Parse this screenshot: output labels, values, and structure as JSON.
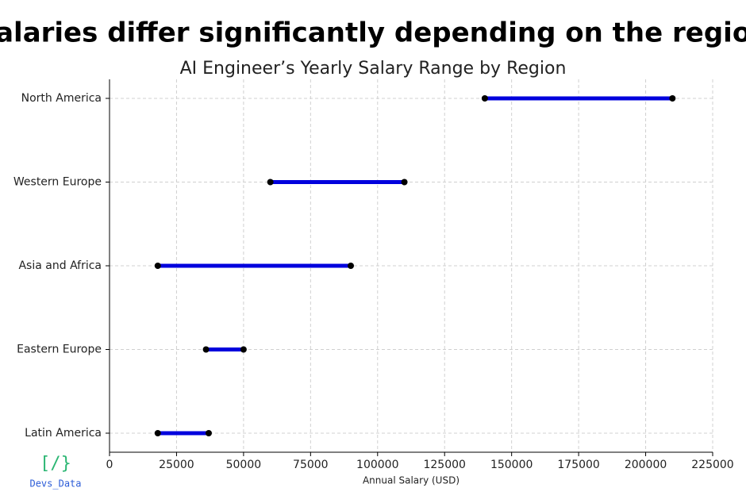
{
  "chart_data": {
    "type": "dumbbell",
    "title": "Salaries differ significantly depending on the region",
    "subtitle": "AI Engineer’s Yearly Salary Range by Region",
    "x_label": "Annual Salary (USD)",
    "categories": [
      "North America",
      "Western Europe",
      "Asia and Africa",
      "Eastern Europe",
      "Latin America"
    ],
    "low": [
      140000,
      60000,
      18000,
      36000,
      18000
    ],
    "high": [
      210000,
      110000,
      90000,
      50000,
      37000
    ],
    "color": "#0000dd",
    "marker_color": "#000000",
    "xlim": [
      0,
      225000
    ],
    "xticks": [
      0,
      25000,
      50000,
      75000,
      100000,
      125000,
      150000,
      175000,
      200000,
      225000
    ],
    "grid": true
  },
  "branding": {
    "symbol": "[/}",
    "name": "Devs_Data"
  }
}
